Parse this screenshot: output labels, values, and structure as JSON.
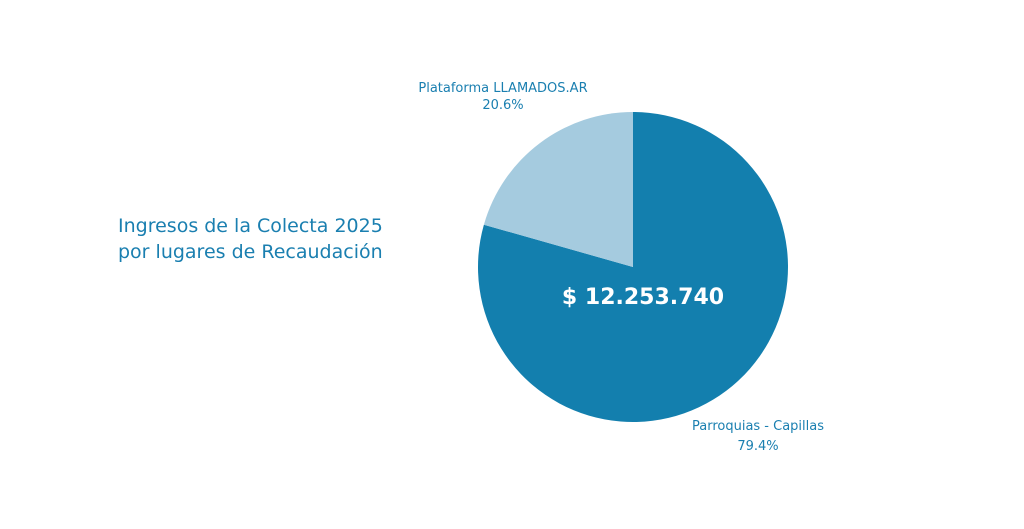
{
  "chart_data": {
    "type": "pie",
    "title": [
      "Ingresos de la Colecta 2025",
      "por lugares de Recaudación"
    ],
    "center_label": "$ 12.253.740",
    "slices": [
      {
        "name": "Parroquias - Capillas",
        "percent_label": "79.4%",
        "value": 79.4,
        "color": "#137fae"
      },
      {
        "name": "Plataforma LLAMADOS.AR",
        "percent_label": "20.6%",
        "value": 20.6,
        "color": "#a5cbdf"
      }
    ]
  }
}
